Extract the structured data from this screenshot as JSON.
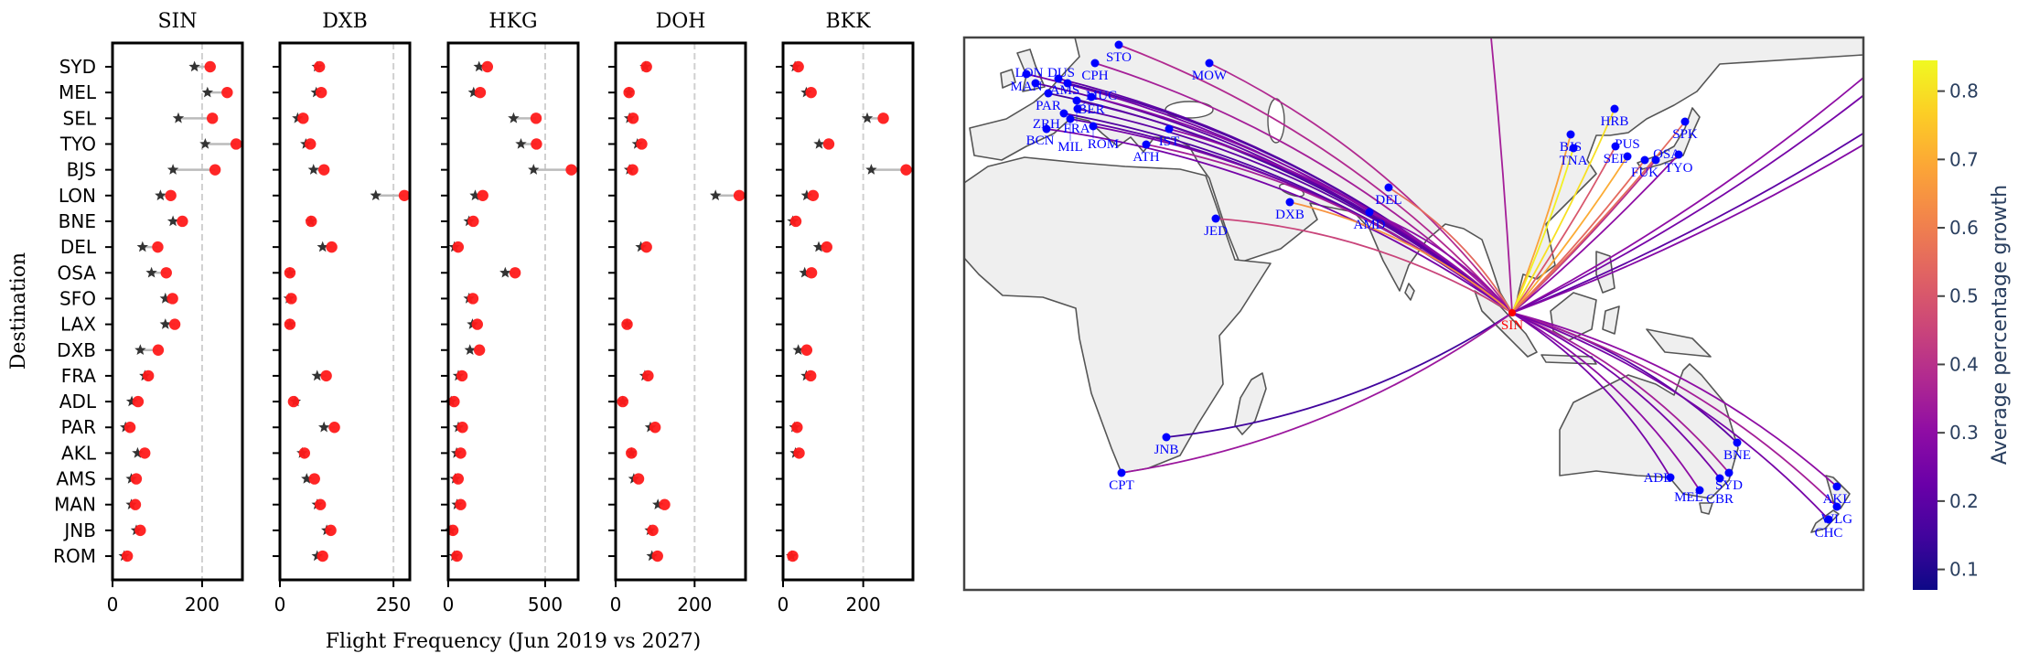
{
  "chart_data": [
    {
      "type": "dot-range",
      "panel": "SIN",
      "title": "SIN",
      "xlim": [
        0,
        290
      ],
      "xticks": [
        "0",
        "200"
      ],
      "xtick_values": [
        0,
        200
      ],
      "ref_line": 200,
      "categories": [
        "SYD",
        "MEL",
        "SEL",
        "TYO",
        "BJS",
        "LON",
        "BNE",
        "DEL",
        "OSA",
        "SFO",
        "LAX",
        "DXB",
        "FRA",
        "ADL",
        "PAR",
        "AKL",
        "AMS",
        "MAN",
        "JNB",
        "ROM"
      ],
      "jun_2019": [
        183,
        212,
        147,
        207,
        135,
        107,
        135,
        67,
        87,
        118,
        118,
        62,
        72,
        43,
        29,
        56,
        42,
        42,
        53,
        26
      ],
      "jun_2027": [
        218,
        256,
        223,
        276,
        229,
        130,
        156,
        101,
        120,
        134,
        139,
        102,
        80,
        57,
        39,
        72,
        53,
        51,
        62,
        33
      ]
    },
    {
      "type": "dot-range",
      "panel": "DXB",
      "title": "DXB",
      "xlim": [
        0,
        286
      ],
      "xticks": [
        "0",
        "250"
      ],
      "xtick_values": [
        0,
        250
      ],
      "ref_line": 250,
      "categories": [
        "SYD",
        "MEL",
        "SEL",
        "TYO",
        "BJS",
        "LON",
        "BNE",
        "DEL",
        "OSA",
        "SFO",
        "LAX",
        "DXB",
        "FRA",
        "ADL",
        "PAR",
        "AKL",
        "AMS",
        "MAN",
        "JNB",
        "ROM"
      ],
      "jun_2019": [
        82,
        80,
        39,
        57,
        74,
        211,
        68,
        94,
        22,
        20,
        22,
        null,
        82,
        34,
        97,
        49,
        59,
        82,
        103,
        82
      ],
      "jun_2027": [
        87,
        91,
        51,
        67,
        97,
        274,
        69,
        114,
        22,
        25,
        22,
        null,
        102,
        30,
        120,
        54,
        76,
        89,
        112,
        94
      ]
    },
    {
      "type": "dot-range",
      "panel": "HKG",
      "title": "HKG",
      "xlim": [
        0,
        670
      ],
      "xticks": [
        "0",
        "500"
      ],
      "xtick_values": [
        0,
        500
      ],
      "ref_line": 500,
      "categories": [
        "SYD",
        "MEL",
        "SEL",
        "TYO",
        "BJS",
        "LON",
        "BNE",
        "DEL",
        "OSA",
        "SFO",
        "LAX",
        "DXB",
        "FRA",
        "ADL",
        "PAR",
        "AKL",
        "AMS",
        "MAN",
        "JNB",
        "ROM"
      ],
      "jun_2019": [
        159,
        131,
        337,
        375,
        440,
        139,
        107,
        32,
        294,
        107,
        125,
        112,
        52,
        15,
        52,
        43,
        36,
        45,
        13,
        32
      ],
      "jun_2027": [
        202,
        165,
        453,
        455,
        635,
        178,
        129,
        51,
        345,
        127,
        150,
        161,
        71,
        30,
        73,
        64,
        51,
        64,
        24,
        45
      ]
    },
    {
      "type": "dot-range",
      "panel": "DOH",
      "title": "DOH",
      "xlim": [
        0,
        329
      ],
      "xticks": [
        "0",
        "200"
      ],
      "xtick_values": [
        0,
        200
      ],
      "ref_line": 200,
      "categories": [
        "SYD",
        "MEL",
        "SEL",
        "TYO",
        "BJS",
        "LON",
        "BNE",
        "DEL",
        "OSA",
        "SFO",
        "LAX",
        "DXB",
        "FRA",
        "ADL",
        "PAR",
        "AKL",
        "AMS",
        "MAN",
        "JNB",
        "ROM"
      ],
      "jun_2019": [
        75,
        34,
        35,
        55,
        35,
        253,
        null,
        64,
        null,
        null,
        29,
        null,
        74,
        18,
        88,
        40,
        46,
        107,
        87,
        92
      ],
      "jun_2027": [
        78,
        34,
        44,
        66,
        43,
        313,
        null,
        78,
        null,
        null,
        29,
        null,
        82,
        18,
        100,
        40,
        58,
        124,
        94,
        106
      ]
    },
    {
      "type": "dot-range",
      "panel": "BKK",
      "title": "BKK",
      "xlim": [
        0,
        324
      ],
      "xticks": [
        "0",
        "200"
      ],
      "xtick_values": [
        0,
        200
      ],
      "ref_line": 200,
      "categories": [
        "SYD",
        "MEL",
        "SEL",
        "TYO",
        "BJS",
        "LON",
        "BNE",
        "DEL",
        "OSA",
        "SFO",
        "LAX",
        "DXB",
        "FRA",
        "ADL",
        "PAR",
        "AKL",
        "AMS",
        "MAN",
        "JNB",
        "ROM"
      ],
      "jun_2019": [
        30,
        58,
        210,
        90,
        220,
        59,
        24,
        89,
        54,
        null,
        null,
        38,
        58,
        null,
        29,
        31,
        null,
        null,
        null,
        21
      ],
      "jun_2027": [
        38,
        70,
        250,
        114,
        307,
        75,
        32,
        109,
        71,
        null,
        null,
        59,
        69,
        null,
        35,
        40,
        null,
        null,
        null,
        24
      ]
    },
    {
      "type": "route-map",
      "hub": "SIN",
      "colorbar": {
        "title": "Average percentage growth",
        "range": [
          0.07,
          0.845
        ],
        "ticks": [
          "0.1",
          "0.2",
          "0.3",
          "0.4",
          "0.5",
          "0.6",
          "0.7",
          "0.8"
        ],
        "tick_values": [
          0.1,
          0.2,
          0.3,
          0.4,
          0.5,
          0.6,
          0.7,
          0.8
        ],
        "colormap": "plasma"
      },
      "routes": [
        {
          "dest": "STO",
          "growth": 0.38
        },
        {
          "dest": "CPH",
          "growth": 0.35
        },
        {
          "dest": "MOW",
          "growth": 0.38
        },
        {
          "dest": "MAN",
          "growth": 0.25
        },
        {
          "dest": "LON",
          "growth": 0.2
        },
        {
          "dest": "AMS",
          "growth": 0.2
        },
        {
          "dest": "DUS",
          "growth": 0.18
        },
        {
          "dest": "PAR",
          "growth": 0.15
        },
        {
          "dest": "BER",
          "growth": 0.28
        },
        {
          "dest": "FRA",
          "growth": 0.2
        },
        {
          "dest": "MUC",
          "growth": 0.2
        },
        {
          "dest": "ZRH",
          "growth": 0.18
        },
        {
          "dest": "MIL",
          "growth": 0.2
        },
        {
          "dest": "ROM",
          "growth": 0.25
        },
        {
          "dest": "BCN",
          "growth": 0.25
        },
        {
          "dest": "IST",
          "growth": 0.3
        },
        {
          "dest": "ATH",
          "growth": 0.35
        },
        {
          "dest": "JED",
          "growth": 0.45
        },
        {
          "dest": "DXB",
          "growth": 0.65
        },
        {
          "dest": "AMD",
          "growth": 0.3
        },
        {
          "dest": "DEL",
          "growth": 0.55
        },
        {
          "dest": "HRB",
          "growth": 0.8
        },
        {
          "dest": "BJS",
          "growth": 0.68
        },
        {
          "dest": "TNA",
          "growth": 0.83
        },
        {
          "dest": "SEL",
          "growth": 0.5
        },
        {
          "dest": "PUS",
          "growth": 0.7
        },
        {
          "dest": "FUK",
          "growth": 0.55
        },
        {
          "dest": "OSA",
          "growth": 0.4
        },
        {
          "dest": "TYO",
          "growth": 0.3
        },
        {
          "dest": "SPK",
          "growth": 0.55
        },
        {
          "dest": "JNB",
          "growth": 0.15
        },
        {
          "dest": "CPT",
          "growth": 0.33
        },
        {
          "dest": "BNE",
          "growth": 0.2
        },
        {
          "dest": "SYD",
          "growth": 0.35
        },
        {
          "dest": "CBR",
          "growth": 0.25
        },
        {
          "dest": "MEL",
          "growth": 0.3
        },
        {
          "dest": "ADL",
          "growth": 0.25
        },
        {
          "dest": "AKL",
          "growth": 0.3
        },
        {
          "dest": "WLG",
          "growth": 0.35
        },
        {
          "dest": "CHC",
          "growth": 0.25
        }
      ],
      "unlabeled_routes": [
        {
          "growth": 0.35
        },
        {
          "growth": 0.3
        },
        {
          "growth": 0.25
        },
        {
          "growth": 0.2
        },
        {
          "growth": 0.28
        }
      ]
    }
  ],
  "axes": {
    "ylabel": "Destination",
    "xlabel": "Flight Frequency (Jun 2019 vs 2027)"
  },
  "colors": {
    "marker_2019": "#333333",
    "marker_2027": "#ff1a1a",
    "connector": "#bbbbbb",
    "city": "#0000ff",
    "hub": "#ff0000"
  }
}
